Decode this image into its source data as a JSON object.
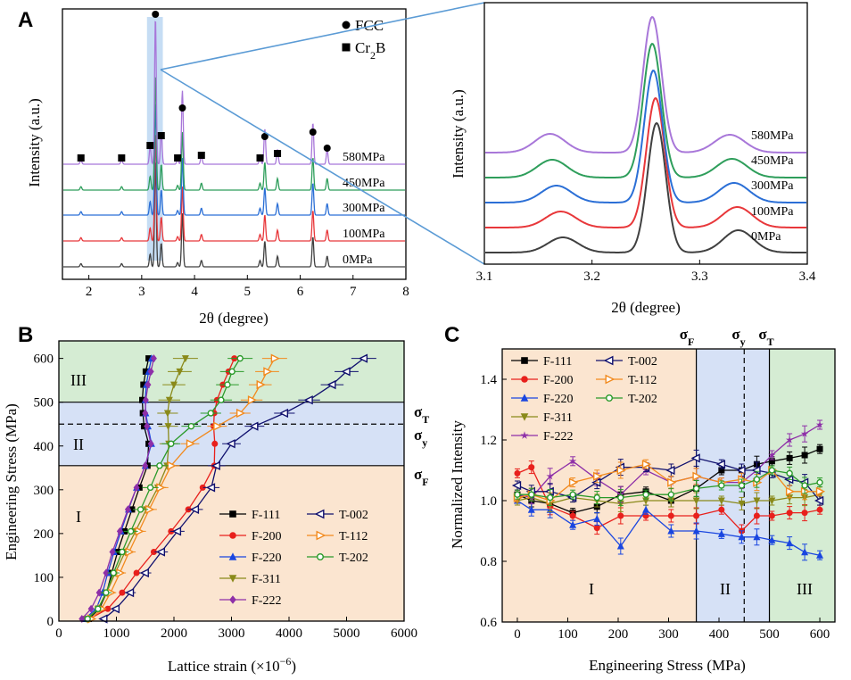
{
  "panels": {
    "A": "A",
    "B": "B",
    "C": "C"
  },
  "chart_data": [
    {
      "id": "A-left",
      "type": "line",
      "xlabel": "2θ (degree)",
      "ylabel": "Intensity (a.u.)",
      "xlim": [
        1.5,
        8
      ],
      "xticks": [
        "2",
        "3",
        "4",
        "5",
        "6",
        "7",
        "8"
      ],
      "highlight_x": [
        3.1,
        3.4
      ],
      "legend": [
        {
          "marker": "circle",
          "label": "FCC"
        },
        {
          "marker": "square",
          "label": "Cr",
          "sub": "2",
          "tail": "B"
        }
      ],
      "series": [
        {
          "name": "0MPa",
          "color": "#404040"
        },
        {
          "name": "100MPa",
          "color": "#e8373a"
        },
        {
          "name": "300MPa",
          "color": "#2b6fd6"
        },
        {
          "name": "450MPa",
          "color": "#2e9e5b"
        },
        {
          "name": "580MPa",
          "color": "#a877d9"
        }
      ],
      "fcc_peaks": [
        3.26,
        3.77,
        5.33,
        6.24,
        6.51
      ],
      "cr2b_peaks": [
        1.85,
        2.62,
        3.16,
        3.37,
        3.68,
        4.13,
        5.24,
        5.57
      ],
      "fcc_heights": [
        1.0,
        0.5,
        0.24,
        0.28,
        0.1
      ],
      "cr2b_heights": [
        0.03,
        0.03,
        0.12,
        0.22,
        0.04,
        0.06,
        0.06,
        0.1
      ]
    },
    {
      "id": "A-right",
      "type": "line",
      "xlabel": "2θ (degree)",
      "ylabel": "Intensity (a.u.)",
      "xlim": [
        3.1,
        3.4
      ],
      "xticks": [
        "3.1",
        "3.2",
        "3.3",
        "3.4"
      ],
      "series": [
        {
          "name": "0MPa",
          "color": "#404040",
          "peaks": [
            3.173,
            3.26,
            3.336
          ]
        },
        {
          "name": "100MPa",
          "color": "#e8373a",
          "peaks": [
            3.171,
            3.259,
            3.335
          ]
        },
        {
          "name": "300MPa",
          "color": "#2b6fd6",
          "peaks": [
            3.167,
            3.257,
            3.332
          ]
        },
        {
          "name": "450MPa",
          "color": "#2e9e5b",
          "peaks": [
            3.163,
            3.256,
            3.33
          ]
        },
        {
          "name": "580MPa",
          "color": "#a877d9",
          "peaks": [
            3.161,
            3.256,
            3.328
          ]
        }
      ]
    },
    {
      "id": "B",
      "type": "line",
      "xlabel": "Lattice strain (×10",
      "xlabel_sup": "−6",
      "xlabel_end": ")",
      "ylabel": "Engineering Stress (MPa)",
      "xlim": [
        0,
        6000
      ],
      "ylim": [
        0,
        640
      ],
      "xticks": [
        "0",
        "1000",
        "2000",
        "3000",
        "4000",
        "5000",
        "6000"
      ],
      "yticks": [
        "0",
        "100",
        "200",
        "300",
        "400",
        "500",
        "600"
      ],
      "regions": [
        {
          "label": "I",
          "from": 0,
          "to": 355,
          "color": "#fbe5d0"
        },
        {
          "label": "II",
          "from": 355,
          "to": 500,
          "color": "#d6e1f6"
        },
        {
          "label": "III",
          "from": 500,
          "to": 640,
          "color": "#d5ecd3"
        }
      ],
      "sigma_labels": [
        {
          "sym": "σ",
          "sub": "T",
          "stress": 500
        },
        {
          "sym": "σ",
          "sub": "y",
          "stress": 450
        },
        {
          "sym": "σ",
          "sub": "F",
          "stress": 355
        }
      ],
      "stress": [
        5,
        28,
        65,
        110,
        158,
        205,
        255,
        305,
        355,
        405,
        445,
        475,
        505,
        540,
        570,
        600
      ],
      "series": [
        {
          "name": "F-111",
          "color": "#000000",
          "marker": "square",
          "x": [
            520,
            700,
            830,
            920,
            1020,
            1140,
            1270,
            1400,
            1540,
            1560,
            1480,
            1460,
            1450,
            1470,
            1510,
            1560
          ]
        },
        {
          "name": "F-200",
          "color": "#e8201c",
          "marker": "circle",
          "x": [
            530,
            850,
            1100,
            1350,
            1650,
            1950,
            2250,
            2500,
            2700,
            2710,
            2690,
            2700,
            2750,
            2850,
            2950,
            3050
          ]
        },
        {
          "name": "F-220",
          "color": "#1a46e0",
          "marker": "triangle",
          "x": [
            450,
            650,
            760,
            850,
            960,
            1080,
            1210,
            1350,
            1500,
            1610,
            1550,
            1510,
            1500,
            1520,
            1560,
            1610
          ]
        },
        {
          "name": "F-311",
          "color": "#8a8a1a",
          "marker": "tri-down",
          "x": [
            480,
            680,
            830,
            980,
            1150,
            1330,
            1520,
            1720,
            1880,
            1910,
            1900,
            1890,
            1920,
            2000,
            2100,
            2200
          ]
        },
        {
          "name": "F-222",
          "color": "#8e2fa8",
          "marker": "diamond",
          "x": [
            400,
            560,
            700,
            820,
            930,
            1060,
            1200,
            1350,
            1500,
            1600,
            1530,
            1500,
            1510,
            1550,
            1600,
            1650
          ]
        },
        {
          "name": "T-002",
          "color": "#10106e",
          "marker": "tri-left",
          "x": [
            780,
            990,
            1240,
            1500,
            1780,
            2060,
            2370,
            2650,
            2740,
            3000,
            3400,
            3920,
            4350,
            4750,
            5000,
            5300
          ]
        },
        {
          "name": "T-112",
          "color": "#f28a1e",
          "marker": "tri-right",
          "x": [
            560,
            740,
            900,
            1060,
            1220,
            1390,
            1570,
            1760,
            1950,
            2280,
            2750,
            3150,
            3350,
            3500,
            3620,
            3750
          ]
        },
        {
          "name": "T-202",
          "color": "#2a9a2a",
          "marker": "circle-open",
          "x": [
            500,
            680,
            820,
            950,
            1100,
            1250,
            1420,
            1590,
            1750,
            1950,
            2300,
            2640,
            2820,
            2930,
            3010,
            3150
          ]
        }
      ]
    },
    {
      "id": "C",
      "type": "line",
      "xlabel": "Engineering Stress (MPa)",
      "ylabel": "Normalized Intensity",
      "xlim": [
        -30,
        630
      ],
      "ylim": [
        0.6,
        1.5
      ],
      "xticks": [
        "0",
        "100",
        "200",
        "300",
        "400",
        "500",
        "600"
      ],
      "yticks": [
        "0.6",
        "0.8",
        "1.0",
        "1.2",
        "1.4"
      ],
      "regions": [
        {
          "label": "I",
          "from": -30,
          "to": 355,
          "color": "#fbe5d0"
        },
        {
          "label": "II",
          "from": 355,
          "to": 500,
          "color": "#d6e1f6"
        },
        {
          "label": "III",
          "from": 500,
          "to": 630,
          "color": "#d5ecd3"
        }
      ],
      "sigma_labels": [
        {
          "sym": "σ",
          "sub": "F",
          "stress": 355
        },
        {
          "sym": "σ",
          "sub": "y",
          "stress": 450
        },
        {
          "sym": "σ",
          "sub": "T",
          "stress": 500
        }
      ],
      "stress": [
        0,
        28,
        65,
        110,
        158,
        205,
        255,
        305,
        355,
        405,
        445,
        475,
        505,
        540,
        570,
        600
      ],
      "series": [
        {
          "name": "F-111",
          "color": "#000000",
          "marker": "square",
          "y": [
            1.02,
            1.0,
            0.99,
            0.96,
            0.98,
            1.02,
            1.03,
            1.0,
            1.04,
            1.1,
            1.1,
            1.12,
            1.13,
            1.14,
            1.15,
            1.17
          ]
        },
        {
          "name": "F-200",
          "color": "#e8201c",
          "marker": "circle",
          "y": [
            1.09,
            1.11,
            0.98,
            0.95,
            0.91,
            0.95,
            0.95,
            0.95,
            0.95,
            0.97,
            0.9,
            0.95,
            0.95,
            0.96,
            0.96,
            0.97
          ]
        },
        {
          "name": "F-220",
          "color": "#1a46e0",
          "marker": "triangle",
          "y": [
            1.0,
            0.97,
            0.97,
            0.92,
            0.94,
            0.85,
            0.97,
            0.9,
            0.9,
            0.89,
            0.88,
            0.88,
            0.87,
            0.86,
            0.83,
            0.82
          ]
        },
        {
          "name": "F-311",
          "color": "#8a8a1a",
          "marker": "tri-down",
          "y": [
            1.0,
            1.01,
            0.99,
            1.01,
            1.0,
            0.99,
            1.0,
            1.0,
            1.0,
            1.0,
            0.99,
            1.0,
            1.0,
            1.01,
            1.01,
            1.02
          ]
        },
        {
          "name": "F-222",
          "color": "#8e2fa8",
          "marker": "star",
          "y": [
            1.02,
            1.01,
            1.08,
            1.13,
            1.07,
            1.02,
            1.1,
            1.06,
            1.08,
            1.06,
            1.06,
            1.1,
            1.15,
            1.2,
            1.22,
            1.25
          ]
        },
        {
          "name": "T-002",
          "color": "#10106e",
          "marker": "tri-left",
          "y": [
            1.05,
            1.03,
            1.03,
            1.01,
            1.06,
            1.11,
            1.11,
            1.1,
            1.14,
            1.12,
            1.1,
            1.1,
            1.09,
            1.07,
            1.06,
            1.0
          ]
        },
        {
          "name": "T-112",
          "color": "#f28a1e",
          "marker": "tri-right",
          "y": [
            1.01,
            1.02,
            1.0,
            1.06,
            1.08,
            1.1,
            1.12,
            1.06,
            1.08,
            1.06,
            1.07,
            1.06,
            1.1,
            1.03,
            1.03,
            1.03
          ]
        },
        {
          "name": "T-202",
          "color": "#2a9a2a",
          "marker": "circle-open",
          "y": [
            1.02,
            1.02,
            1.01,
            1.02,
            1.01,
            1.01,
            1.02,
            1.02,
            1.04,
            1.05,
            1.05,
            1.07,
            1.1,
            1.09,
            1.05,
            1.06
          ]
        }
      ]
    }
  ]
}
